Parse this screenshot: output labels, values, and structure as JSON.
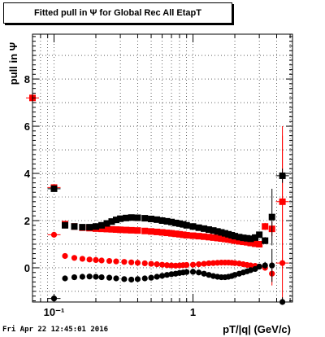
{
  "title": "Fitted pull in  Ψ  for Global Rec All EtapT",
  "footer": "Fri Apr 22 12:45:01 2016",
  "chart_data": {
    "type": "scatter",
    "title": "Fitted pull in  Ψ  for Global Rec All EtapT",
    "xlabel": "pT/|q| (GeV/c)",
    "ylabel": "pull in  Ψ",
    "xscale": "log",
    "xlim": [
      0.07,
      5.2
    ],
    "ylim": [
      -1.45,
      9.9
    ],
    "x_tick_labels": [
      "10⁻¹",
      "1"
    ],
    "y_tick_labels": [
      "0",
      "2",
      "4",
      "6",
      "8"
    ],
    "grid": true,
    "series": [
      {
        "color": "#ff0000",
        "marker": "square",
        "points": [
          [
            0.07,
            7.2,
            2.0
          ],
          [
            0.1,
            3.4,
            0
          ],
          [
            0.12,
            1.85,
            0
          ],
          [
            0.14,
            1.75,
            0
          ],
          [
            0.16,
            1.7,
            0
          ],
          [
            0.18,
            1.68,
            0
          ],
          [
            0.2,
            1.66,
            0
          ],
          [
            0.22,
            1.65,
            0
          ],
          [
            0.24,
            1.64,
            0
          ],
          [
            0.26,
            1.63,
            0
          ],
          [
            0.28,
            1.62,
            0
          ],
          [
            0.3,
            1.61,
            0
          ],
          [
            0.33,
            1.6,
            0
          ],
          [
            0.36,
            1.59,
            0
          ],
          [
            0.4,
            1.58,
            0
          ],
          [
            0.45,
            1.56,
            0
          ],
          [
            0.5,
            1.54,
            0
          ],
          [
            0.55,
            1.52,
            0
          ],
          [
            0.6,
            1.5,
            0
          ],
          [
            0.65,
            1.48,
            0
          ],
          [
            0.7,
            1.46,
            0
          ],
          [
            0.75,
            1.44,
            0
          ],
          [
            0.8,
            1.42,
            0
          ],
          [
            0.85,
            1.4,
            0
          ],
          [
            0.9,
            1.38,
            0
          ],
          [
            1.0,
            1.36,
            0
          ],
          [
            1.1,
            1.34,
            0
          ],
          [
            1.2,
            1.32,
            0
          ],
          [
            1.3,
            1.3,
            0
          ],
          [
            1.4,
            1.28,
            0
          ],
          [
            1.5,
            1.26,
            0
          ],
          [
            1.6,
            1.24,
            0
          ],
          [
            1.7,
            1.22,
            0
          ],
          [
            1.8,
            1.2,
            0
          ],
          [
            1.9,
            1.18,
            0
          ],
          [
            2.0,
            1.15,
            0
          ],
          [
            2.15,
            1.12,
            0
          ],
          [
            2.3,
            1.1,
            0
          ],
          [
            2.45,
            1.08,
            0
          ],
          [
            2.6,
            1.05,
            0
          ],
          [
            2.8,
            1.02,
            0
          ],
          [
            3.0,
            1.0,
            0
          ],
          [
            3.3,
            1.75,
            0.15
          ],
          [
            3.7,
            1.65,
            0.3
          ],
          [
            4.4,
            2.8,
            2.8
          ]
        ]
      },
      {
        "color": "#ff0000",
        "marker": "circle",
        "points": [
          [
            0.1,
            1.4,
            0
          ],
          [
            0.12,
            0.5,
            0
          ],
          [
            0.14,
            0.42,
            0
          ],
          [
            0.16,
            0.38,
            0
          ],
          [
            0.18,
            0.35,
            0
          ],
          [
            0.2,
            0.33,
            0
          ],
          [
            0.22,
            0.31,
            0
          ],
          [
            0.25,
            0.29,
            0
          ],
          [
            0.28,
            0.27,
            0
          ],
          [
            0.32,
            0.25,
            0
          ],
          [
            0.36,
            0.23,
            0
          ],
          [
            0.4,
            0.21,
            0
          ],
          [
            0.45,
            0.19,
            0
          ],
          [
            0.5,
            0.17,
            0
          ],
          [
            0.55,
            0.15,
            0
          ],
          [
            0.6,
            0.13,
            0
          ],
          [
            0.65,
            0.11,
            0
          ],
          [
            0.7,
            0.1,
            0
          ],
          [
            0.75,
            0.09,
            0
          ],
          [
            0.8,
            0.1,
            0
          ],
          [
            0.85,
            0.11,
            0
          ],
          [
            0.9,
            0.12,
            0
          ],
          [
            1.0,
            0.13,
            0
          ],
          [
            1.1,
            0.15,
            0
          ],
          [
            1.2,
            0.17,
            0
          ],
          [
            1.3,
            0.19,
            0
          ],
          [
            1.4,
            0.2,
            0
          ],
          [
            1.5,
            0.21,
            0
          ],
          [
            1.6,
            0.22,
            0
          ],
          [
            1.7,
            0.22,
            0
          ],
          [
            1.8,
            0.22,
            0
          ],
          [
            1.9,
            0.21,
            0
          ],
          [
            2.0,
            0.2,
            0
          ],
          [
            2.15,
            0.18,
            0
          ],
          [
            2.3,
            0.15,
            0
          ],
          [
            2.45,
            0.12,
            0
          ],
          [
            2.6,
            0.1,
            0
          ],
          [
            2.8,
            0.08,
            0
          ],
          [
            3.0,
            0.05,
            0
          ],
          [
            3.3,
            0.0,
            0
          ],
          [
            3.7,
            -0.25,
            0.5
          ],
          [
            4.4,
            0.2,
            5.8
          ]
        ]
      },
      {
        "color": "#000000",
        "marker": "square",
        "points": [
          [
            0.1,
            3.35,
            0
          ],
          [
            0.12,
            1.8,
            0
          ],
          [
            0.14,
            1.75,
            0
          ],
          [
            0.16,
            1.72,
            0
          ],
          [
            0.18,
            1.72,
            0
          ],
          [
            0.2,
            1.75,
            0
          ],
          [
            0.22,
            1.8,
            0
          ],
          [
            0.24,
            1.88,
            0
          ],
          [
            0.26,
            1.96,
            0
          ],
          [
            0.28,
            2.03,
            0
          ],
          [
            0.3,
            2.08,
            0
          ],
          [
            0.33,
            2.11,
            0
          ],
          [
            0.36,
            2.13,
            0
          ],
          [
            0.4,
            2.12,
            0
          ],
          [
            0.45,
            2.1,
            0
          ],
          [
            0.5,
            2.07,
            0
          ],
          [
            0.55,
            2.04,
            0
          ],
          [
            0.6,
            2.0,
            0
          ],
          [
            0.65,
            1.97,
            0
          ],
          [
            0.7,
            1.94,
            0
          ],
          [
            0.75,
            1.9,
            0
          ],
          [
            0.8,
            1.87,
            0
          ],
          [
            0.85,
            1.84,
            0
          ],
          [
            0.9,
            1.8,
            0
          ],
          [
            1.0,
            1.75,
            0
          ],
          [
            1.1,
            1.7,
            0
          ],
          [
            1.2,
            1.66,
            0
          ],
          [
            1.3,
            1.62,
            0
          ],
          [
            1.4,
            1.58,
            0
          ],
          [
            1.5,
            1.54,
            0
          ],
          [
            1.6,
            1.5,
            0
          ],
          [
            1.7,
            1.46,
            0
          ],
          [
            1.8,
            1.42,
            0
          ],
          [
            1.9,
            1.38,
            0
          ],
          [
            2.0,
            1.34,
            0
          ],
          [
            2.15,
            1.3,
            0
          ],
          [
            2.3,
            1.27,
            0
          ],
          [
            2.45,
            1.25,
            0
          ],
          [
            2.6,
            1.23,
            0
          ],
          [
            2.8,
            1.28,
            0
          ],
          [
            3.0,
            1.4,
            0
          ],
          [
            3.3,
            1.15,
            0.15
          ],
          [
            3.7,
            2.15,
            1.2
          ],
          [
            4.4,
            3.9,
            0.3
          ]
        ]
      },
      {
        "color": "#000000",
        "marker": "circle",
        "points": [
          [
            0.1,
            -1.3,
            0
          ],
          [
            0.12,
            -0.45,
            0
          ],
          [
            0.14,
            -0.4,
            0
          ],
          [
            0.16,
            -0.38,
            0
          ],
          [
            0.18,
            -0.37,
            0
          ],
          [
            0.2,
            -0.38,
            0
          ],
          [
            0.22,
            -0.4,
            0
          ],
          [
            0.25,
            -0.42,
            0
          ],
          [
            0.28,
            -0.45,
            0
          ],
          [
            0.32,
            -0.48,
            0
          ],
          [
            0.36,
            -0.5,
            0
          ],
          [
            0.4,
            -0.48,
            0
          ],
          [
            0.45,
            -0.45,
            0
          ],
          [
            0.5,
            -0.42,
            0
          ],
          [
            0.55,
            -0.38,
            0
          ],
          [
            0.6,
            -0.34,
            0
          ],
          [
            0.65,
            -0.3,
            0
          ],
          [
            0.7,
            -0.27,
            0
          ],
          [
            0.75,
            -0.25,
            0
          ],
          [
            0.8,
            -0.22,
            0
          ],
          [
            0.85,
            -0.2,
            0
          ],
          [
            0.9,
            -0.18,
            0
          ],
          [
            1.0,
            -0.17,
            0
          ],
          [
            1.1,
            -0.2,
            0
          ],
          [
            1.2,
            -0.25,
            0
          ],
          [
            1.3,
            -0.3,
            0
          ],
          [
            1.4,
            -0.35,
            0
          ],
          [
            1.5,
            -0.38,
            0
          ],
          [
            1.6,
            -0.4,
            0
          ],
          [
            1.7,
            -0.4,
            0
          ],
          [
            1.8,
            -0.38,
            0
          ],
          [
            1.9,
            -0.35,
            0
          ],
          [
            2.0,
            -0.3,
            0
          ],
          [
            2.15,
            -0.25,
            0
          ],
          [
            2.3,
            -0.2,
            0
          ],
          [
            2.45,
            -0.15,
            0
          ],
          [
            2.6,
            -0.1,
            0
          ],
          [
            2.8,
            -0.05,
            0
          ],
          [
            3.0,
            0.05,
            0
          ],
          [
            3.3,
            0.1,
            0.15
          ],
          [
            3.7,
            0.1,
            0.7
          ],
          [
            4.4,
            -1.45,
            0.2
          ]
        ]
      }
    ]
  }
}
